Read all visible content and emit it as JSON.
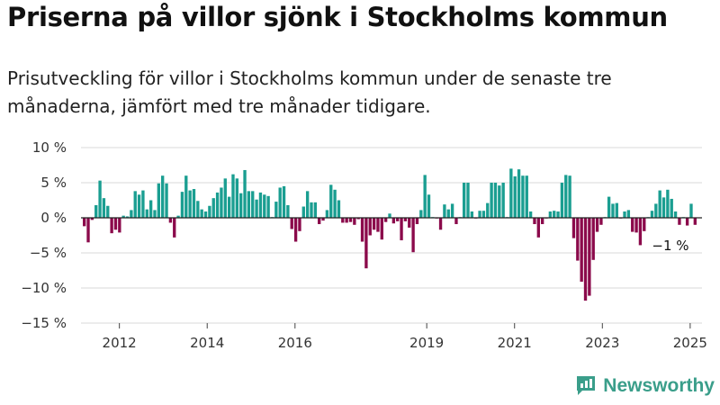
{
  "header": {
    "title": "Priserna på villor sjönk i Stockholms kommun",
    "subtitle": "Prisutveckling för villor i Stockholms kommun under de senaste tre månaderna, jämfört med tre månader tidigare."
  },
  "brand": {
    "name": "Newsworthy",
    "icon": "newsworthy-logo-icon",
    "color": "#3a9e8a"
  },
  "chart_data": {
    "type": "bar",
    "title": "",
    "xlabel": "",
    "ylabel": "",
    "x_start": "2011-03",
    "x_end": "2025-03",
    "ylim": [
      -15,
      10
    ],
    "yticks": [
      10,
      5,
      0,
      -5,
      -10,
      -15
    ],
    "ytick_labels": [
      "10 %",
      "5 %",
      "0 %",
      "−5 %",
      "−10 %",
      "−15 %"
    ],
    "xticks": [
      2012,
      2014,
      2016,
      2019,
      2021,
      2023,
      2025
    ],
    "grid": true,
    "colors": {
      "positive": "#1a9e91",
      "negative": "#8b0a4b"
    },
    "annotation": {
      "text": "−1 %",
      "value": -1
    },
    "values": [
      -1.2,
      -3.5,
      -0.3,
      1.8,
      5.3,
      2.8,
      1.7,
      -2.2,
      -1.7,
      -2.1,
      0.3,
      0.2,
      1.1,
      3.8,
      3.3,
      3.9,
      1.2,
      2.5,
      1.1,
      4.9,
      6.0,
      4.9,
      -0.7,
      -2.8,
      0.3,
      3.7,
      6.0,
      3.9,
      4.1,
      2.4,
      1.2,
      0.9,
      1.7,
      2.8,
      3.6,
      4.3,
      5.6,
      3.0,
      6.2,
      5.6,
      3.5,
      6.8,
      3.8,
      3.8,
      2.6,
      3.6,
      3.3,
      3.1,
      0.1,
      2.3,
      4.3,
      4.5,
      1.8,
      -1.6,
      -3.4,
      -1.9,
      1.6,
      3.8,
      2.2,
      2.2,
      -0.9,
      -0.4,
      1.1,
      4.7,
      4.0,
      2.5,
      -0.7,
      -0.7,
      -0.6,
      -1.0,
      -0.2,
      -3.4,
      -7.2,
      -2.5,
      -1.7,
      -2.0,
      -3.1,
      -0.6,
      0.6,
      -0.8,
      -0.5,
      -3.2,
      -0.5,
      -1.4,
      -4.9,
      -0.9,
      1.1,
      6.1,
      3.3,
      0.1,
      -0.1,
      -1.7,
      1.9,
      1.2,
      2.0,
      -0.9,
      0.1,
      5.0,
      5.0,
      0.9,
      -0.1,
      1.0,
      1.0,
      2.1,
      5.0,
      5.0,
      4.6,
      5.0,
      0.1,
      7.0,
      5.9,
      6.9,
      6.0,
      6.0,
      0.9,
      -0.9,
      -2.8,
      -0.9,
      -0.1,
      0.9,
      1.0,
      0.9,
      5.0,
      6.1,
      6.0,
      -2.9,
      -6.1,
      -9.1,
      -11.8,
      -11.1,
      -6.0,
      -2.0,
      -1.0,
      0.1,
      3.0,
      2.0,
      2.1,
      -0.1,
      0.9,
      1.1,
      -2.0,
      -2.1,
      -3.9,
      -1.9,
      0.1,
      1.0,
      2.0,
      3.9,
      2.9,
      4.0,
      2.7,
      0.9,
      -1.0,
      0.1,
      -1.1,
      2.0,
      -1.0
    ]
  }
}
